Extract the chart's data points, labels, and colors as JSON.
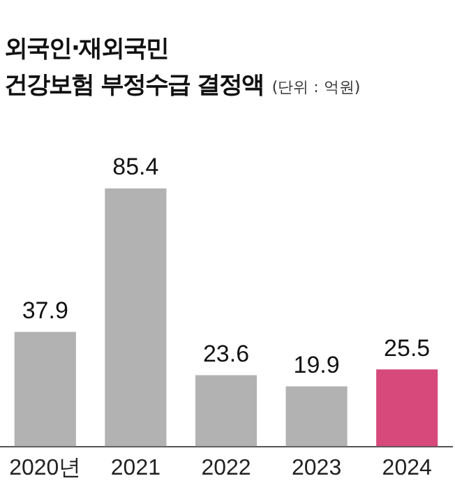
{
  "chart_data": {
    "type": "bar",
    "title": "외국인·재외국민\n건강보험 부정수급 결정액",
    "subtitle": "(단위 : 억원)",
    "categories": [
      "2020년",
      "2021",
      "2022",
      "2023",
      "2024"
    ],
    "values": [
      37.9,
      85.4,
      23.6,
      19.9,
      25.5
    ],
    "colors": [
      "#b2b2b2",
      "#b2b2b2",
      "#b2b2b2",
      "#b2b2b2",
      "#d6497a"
    ],
    "data_labels": true,
    "grid": false,
    "legend": false
  }
}
